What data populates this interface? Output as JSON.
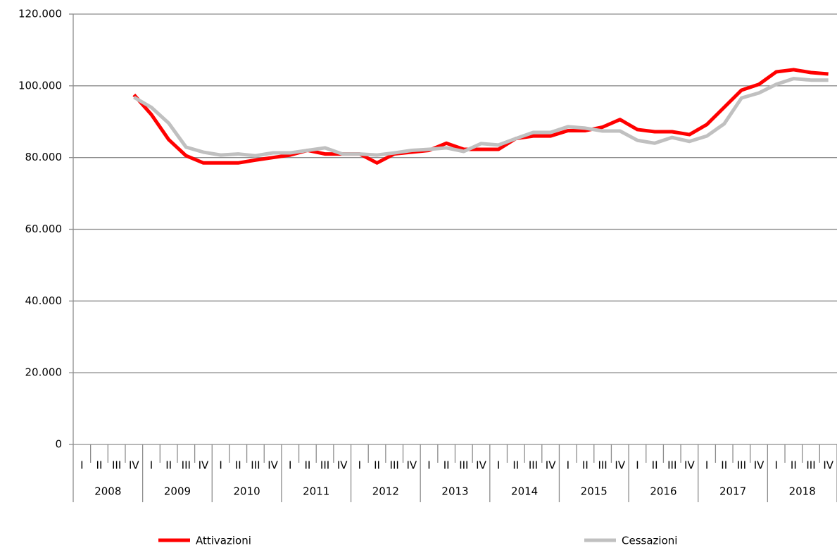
{
  "chart_data": {
    "type": "line",
    "categories": [
      "I",
      "II",
      "III",
      "IV",
      "I",
      "II",
      "III",
      "IV",
      "I",
      "II",
      "III",
      "IV",
      "I",
      "II",
      "III",
      "IV",
      "I",
      "II",
      "III",
      "IV",
      "I",
      "II",
      "III",
      "IV",
      "I",
      "II",
      "III",
      "IV",
      "I",
      "II",
      "III",
      "IV",
      "I",
      "II",
      "III",
      "IV",
      "I",
      "II",
      "III",
      "IV",
      "I",
      "II",
      "III",
      "IV"
    ],
    "x_groups": [
      "2008",
      "2009",
      "2010",
      "2011",
      "2012",
      "2013",
      "2014",
      "2015",
      "2016",
      "2017",
      "2018"
    ],
    "series": [
      {
        "name": "Attivazioni",
        "color": "#ff0000",
        "values": [
          null,
          null,
          null,
          97500,
          92000,
          85000,
          80500,
          78500,
          78500,
          78500,
          79300,
          80000,
          80700,
          82000,
          81000,
          81000,
          81000,
          78500,
          81000,
          81500,
          82000,
          84000,
          82300,
          82300,
          82300,
          85300,
          86000,
          86000,
          87500,
          87500,
          88500,
          90600,
          87800,
          87200,
          87200,
          86400,
          89200,
          94000,
          98800,
          100400,
          103900,
          104500,
          103700,
          103300
        ]
      },
      {
        "name": "Cessazioni",
        "color": "#c0c0c0",
        "values": [
          null,
          null,
          null,
          96800,
          94000,
          89600,
          82900,
          81500,
          80700,
          81000,
          80500,
          81300,
          81300,
          82000,
          82700,
          81000,
          81000,
          80700,
          81300,
          82000,
          82300,
          82700,
          81700,
          83900,
          83500,
          85300,
          87000,
          87000,
          88600,
          88200,
          87400,
          87400,
          84800,
          84000,
          85600,
          84500,
          86000,
          89400,
          96600,
          98000,
          100400,
          102000,
          101600,
          101600
        ]
      }
    ],
    "ylim": [
      0,
      120000
    ],
    "yticks": [
      0,
      {
        "value": 20000,
        "label": "20.000"
      },
      {
        "value": 40000,
        "label": "40.000"
      },
      {
        "value": 60000,
        "label": "60.000"
      },
      {
        "value": 80000,
        "label": "80.000"
      },
      {
        "value": 100000,
        "label": "100.000"
      },
      {
        "value": 120000,
        "label": "120.000"
      }
    ],
    "grid": true,
    "legend": "bottom"
  }
}
